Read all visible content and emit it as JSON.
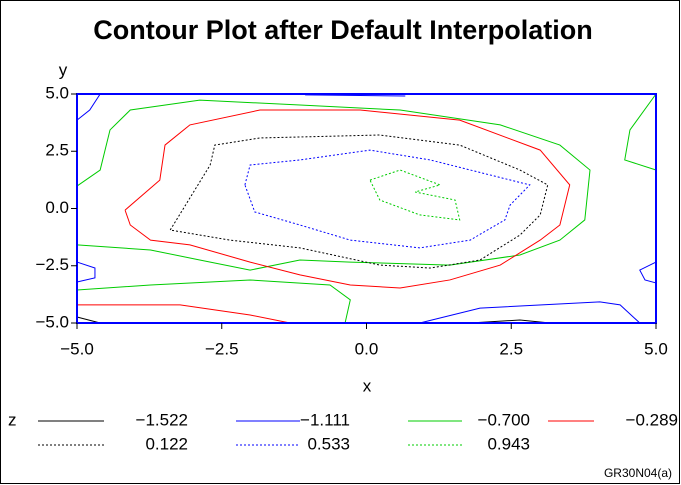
{
  "chart_data": {
    "type": "contour",
    "title": "Contour Plot after Default Interpolation",
    "xlabel": "x",
    "ylabel": "y",
    "legend_title": "z",
    "footnote": "GR30N04(a)",
    "frame_color": "#0000ff",
    "xlim": [
      -5,
      5
    ],
    "ylim": [
      -5,
      5
    ],
    "xticks": [
      {
        "value": -5,
        "label": "−5.0"
      },
      {
        "value": -2.5,
        "label": "−2.5"
      },
      {
        "value": 0,
        "label": "0.0"
      },
      2.5,
      {
        "value": 5,
        "label": "5.0"
      }
    ],
    "yticks": [
      {
        "value": -5,
        "label": "−5.0"
      },
      {
        "value": -2.5,
        "label": "−2.5"
      },
      {
        "value": 0,
        "label": "0.0"
      },
      2.5,
      {
        "value": 5,
        "label": "5.0"
      }
    ],
    "series": [
      {
        "name": "−1.522",
        "color": "#000000",
        "dash": "solid",
        "lines": [
          {
            "x": [
              -5,
              -4.6
            ],
            "y": [
              -4.74,
              -5
            ]
          },
          {
            "x": [
              1.79,
              2.65,
              3.17
            ],
            "y": [
              -5,
              -4.87,
              -5
            ]
          }
        ]
      },
      {
        "name": "−1.111",
        "color": "#0000ff",
        "dash": "solid",
        "lines": [
          {
            "x": [
              -5,
              -4.78,
              -4.6
            ],
            "y": [
              3.86,
              4.3,
              5
            ]
          },
          {
            "x": [
              -1.06,
              0.67
            ],
            "y": [
              4.96,
              4.91
            ]
          },
          {
            "x": [
              -5,
              -4.69,
              -4.69,
              -5
            ],
            "y": [
              -2.34,
              -2.6,
              -3.03,
              -3.21
            ]
          },
          {
            "x": [
              0.92,
              1.96,
              4.03,
              4.38,
              4.72
            ],
            "y": [
              -5,
              -4.35,
              -4.08,
              -4.21,
              -5
            ]
          },
          {
            "x": [
              5,
              4.72,
              4.81,
              5
            ],
            "y": [
              -2.34,
              -2.69,
              -3.12,
              -3.25
            ]
          }
        ]
      },
      {
        "name": "−0.700",
        "color": "#00cc00",
        "dash": "solid",
        "lines": [
          {
            "x": [
              -5,
              -4.6,
              -4.43,
              -4.08,
              -2.88,
              -1.15,
              0.58,
              2.31,
              3.34,
              3.86,
              3.77,
              3.34,
              2.65,
              1.44,
              -0.28,
              -1.15,
              -2.01,
              -2.88,
              -3.73,
              -5
            ],
            "y": [
              0.98,
              1.68,
              3.43,
              4.3,
              4.73,
              4.52,
              4.3,
              3.65,
              2.77,
              1.68,
              -0.5,
              -1.38,
              -2.03,
              -2.47,
              -2.34,
              -2.25,
              -2.69,
              -2.25,
              -1.81,
              -1.59
            ]
          },
          {
            "x": [
              -5,
              -3.73,
              -2.01,
              -0.63,
              -0.28,
              -0.37
            ],
            "y": [
              -3.56,
              -3.34,
              -3.12,
              -3.34,
              -3.99,
              -5
            ]
          },
          {
            "x": [
              5,
              4.55,
              4.46,
              5
            ],
            "y": [
              5,
              3.43,
              2.12,
              1.68
            ]
          }
        ]
      },
      {
        "name": "−0.289",
        "color": "#ff0000",
        "dash": "solid",
        "lines": [
          {
            "x": [
              -4.17,
              -3.57,
              -3.48,
              -3.05,
              -1.84,
              -0.11,
              1.61,
              3.0,
              3.51,
              3.34,
              3.0,
              2.31,
              1.44,
              0.58,
              -0.28,
              -1.15,
              -2.01,
              -3.05,
              -3.73,
              -4.08,
              -4.17
            ],
            "y": [
              -0.07,
              1.24,
              2.77,
              3.65,
              4.3,
              4.3,
              3.86,
              2.55,
              1.03,
              -0.72,
              -1.38,
              -2.47,
              -3.12,
              -3.47,
              -3.34,
              -2.9,
              -2.34,
              -1.59,
              -1.38,
              -0.72,
              -0.07
            ]
          },
          {
            "x": [
              -5,
              -3.22,
              -2.01,
              -1.32
            ],
            "y": [
              -4.21,
              -4.21,
              -4.65,
              -5
            ]
          }
        ]
      },
      {
        "name": "0.122",
        "color": "#000000",
        "dash": "dotted",
        "lines": [
          {
            "x": [
              -3.39,
              -2.7,
              -2.62,
              -1.84,
              0.23,
              1.61,
              2.65,
              3.13,
              3.0,
              2.65,
              1.96,
              1.1,
              0.23,
              -1.15,
              -2.36,
              -3.39
            ],
            "y": [
              -0.94,
              1.9,
              2.77,
              3.08,
              3.21,
              2.77,
              1.68,
              1.03,
              -0.28,
              -1.16,
              -2.25,
              -2.6,
              -2.47,
              -1.72,
              -1.38,
              -0.94
            ]
          }
        ]
      },
      {
        "name": "0.533",
        "color": "#0000ff",
        "dash": "dotted",
        "lines": [
          {
            "x": [
              -2.1,
              -2.01,
              -1.15,
              0.06,
              1.1,
              2.82,
              2.48,
              2.39,
              1.79,
              0.92,
              -0.28,
              -1.15,
              -1.93,
              -2.1
            ],
            "y": [
              1.03,
              1.9,
              2.12,
              2.55,
              2.12,
              1.03,
              0.15,
              -0.5,
              -1.38,
              -1.72,
              -1.38,
              -0.72,
              -0.15,
              1.03
            ]
          }
        ]
      },
      {
        "name": "0.943",
        "color": "#00cc00",
        "dash": "dotted",
        "lines": [
          {
            "x": [
              0.06,
              0.58,
              1.27,
              0.84,
              1.53,
              1.61,
              0.92,
              0.23,
              0.06
            ],
            "y": [
              1.24,
              1.68,
              1.03,
              0.72,
              0.37,
              -0.5,
              -0.28,
              0.37,
              1.24
            ]
          }
        ]
      }
    ]
  }
}
